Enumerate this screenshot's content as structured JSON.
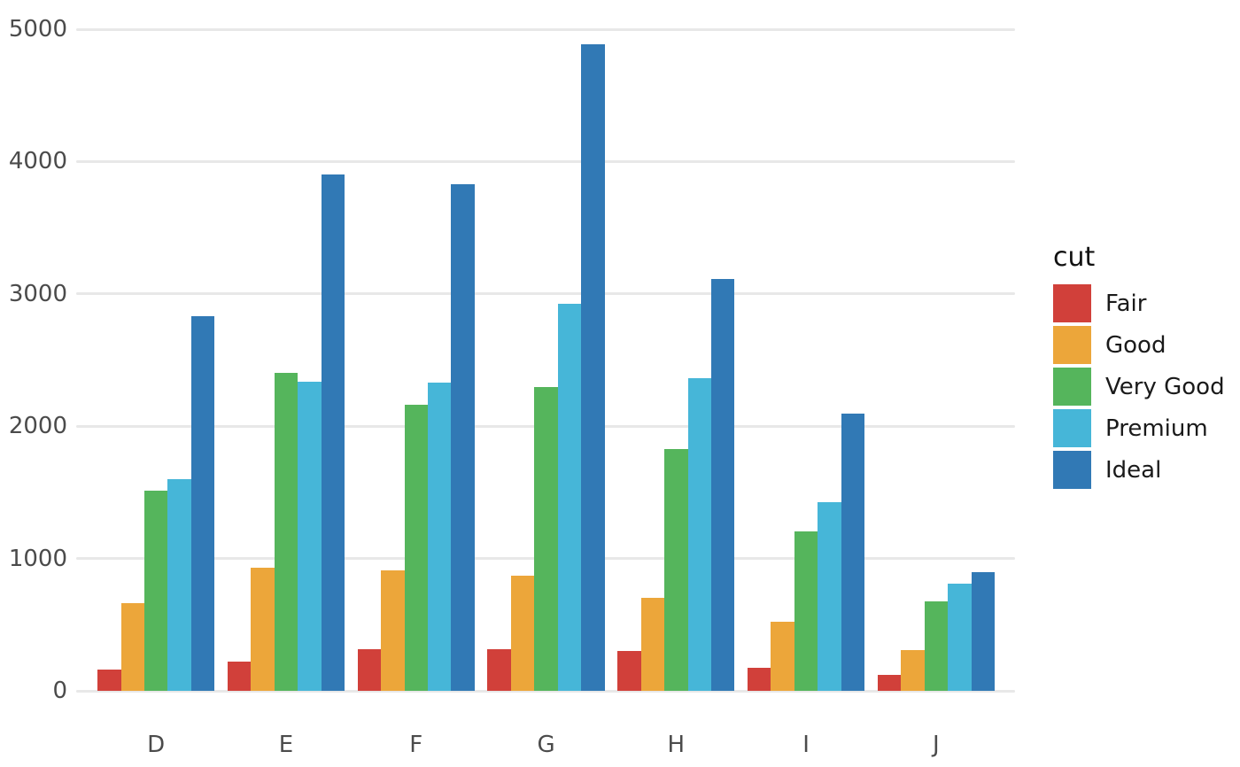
{
  "chart_data": {
    "type": "bar",
    "title": "",
    "xlabel": "",
    "ylabel": "",
    "legend_title": "cut",
    "legend_position": "right",
    "grid": "horizontal major gridlines only",
    "background": "#ffffff",
    "gridline_color": "#e8e8e8",
    "tick_label_color": "#4b4b4b",
    "legend_text_color": "#1a1a1a",
    "categories": [
      "D",
      "E",
      "F",
      "G",
      "H",
      "I",
      "J"
    ],
    "yticks": [
      0,
      1000,
      2000,
      3000,
      4000,
      5000
    ],
    "ylim": [
      0,
      5000
    ],
    "series": [
      {
        "name": "Fair",
        "color": "#d1403a",
        "values": [
          163,
          224,
          312,
          314,
          303,
          175,
          119
        ]
      },
      {
        "name": "Good",
        "color": "#eca63a",
        "values": [
          662,
          933,
          909,
          871,
          702,
          522,
          307
        ]
      },
      {
        "name": "Very Good",
        "color": "#55b55c",
        "values": [
          1513,
          2400,
          2164,
          2299,
          1824,
          1204,
          678
        ]
      },
      {
        "name": "Premium",
        "color": "#46b6d8",
        "values": [
          1603,
          2337,
          2331,
          2924,
          2360,
          1428,
          808
        ]
      },
      {
        "name": "Ideal",
        "color": "#3179b5",
        "values": [
          2834,
          3903,
          3826,
          4884,
          3115,
          2093,
          896
        ]
      }
    ]
  }
}
